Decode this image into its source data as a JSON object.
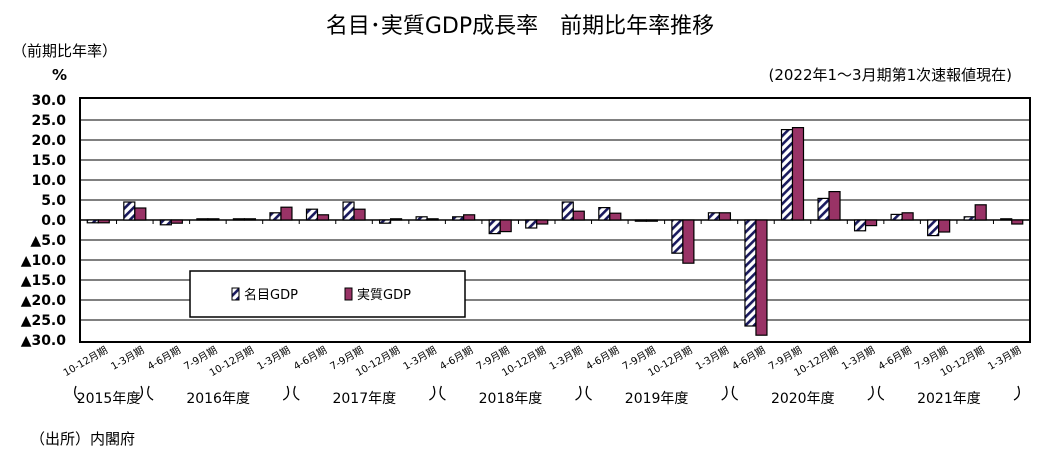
{
  "chart_data": {
    "type": "bar",
    "title": "名目･実質GDP成長率　前期比年率推移",
    "subtitle": "(2022年1～3月期第1次速報値現在)",
    "ylabel": "（前期比年率）",
    "yunit": "%",
    "ylim": [
      -30,
      30
    ],
    "yticks": [
      30,
      25,
      20,
      15,
      10,
      5,
      0,
      -5,
      -10,
      -15,
      -20,
      -25,
      -30
    ],
    "ytick_labels": [
      "30.0",
      "25.0",
      "20.0",
      "15.0",
      "10.0",
      "5.0",
      "0.0",
      "▲5.0",
      "▲10.0",
      "▲15.0",
      "▲20.0",
      "▲25.0",
      "▲30.0"
    ],
    "grid": true,
    "legend_placement": "lower-left",
    "categories": [
      "10-12月期",
      "1-3月期",
      "4-6月期",
      "7-9月期",
      "10-12月期",
      "1-3月期",
      "4-6月期",
      "7-9月期",
      "10-12月期",
      "1-3月期",
      "4-6月期",
      "7-9月期",
      "10-12月期",
      "1-3月期",
      "4-6月期",
      "7-9月期",
      "10-12月期",
      "1-3月期",
      "4-6月期",
      "7-9月期",
      "10-12月期",
      "1-3月期",
      "4-6月期",
      "7-9月期",
      "10-12月期",
      "1-3月期"
    ],
    "fiscal_years": [
      {
        "label": "2015年度",
        "count": 2
      },
      {
        "label": "2016年度",
        "count": 4
      },
      {
        "label": "2017年度",
        "count": 4
      },
      {
        "label": "2018年度",
        "count": 4
      },
      {
        "label": "2019年度",
        "count": 4
      },
      {
        "label": "2020年度",
        "count": 4
      },
      {
        "label": "2021年度",
        "count": 4
      }
    ],
    "series": [
      {
        "name": "名目GDP",
        "color": "#ffffff",
        "stripe": "#1a1a5e",
        "values": [
          -0.7,
          4.5,
          -1.2,
          0.3,
          0.3,
          1.8,
          2.7,
          4.5,
          -0.8,
          0.8,
          0.8,
          -3.4,
          -2.0,
          4.5,
          3.1,
          -0.3,
          -8.3,
          1.8,
          -26.5,
          22.6,
          5.4,
          -2.7,
          1.4,
          -3.9,
          0.8,
          0.3
        ]
      },
      {
        "name": "実質GDP",
        "color": "#993366",
        "values": [
          -0.7,
          3.0,
          -0.8,
          0.3,
          0.3,
          3.2,
          1.3,
          2.7,
          0.3,
          0.3,
          1.3,
          -2.9,
          -1.0,
          2.2,
          1.7,
          -0.3,
          -10.8,
          1.8,
          -28.8,
          23.1,
          7.1,
          -1.4,
          1.8,
          -3.0,
          3.8,
          -1.0
        ]
      }
    ]
  },
  "source": "（出所）内閣府"
}
